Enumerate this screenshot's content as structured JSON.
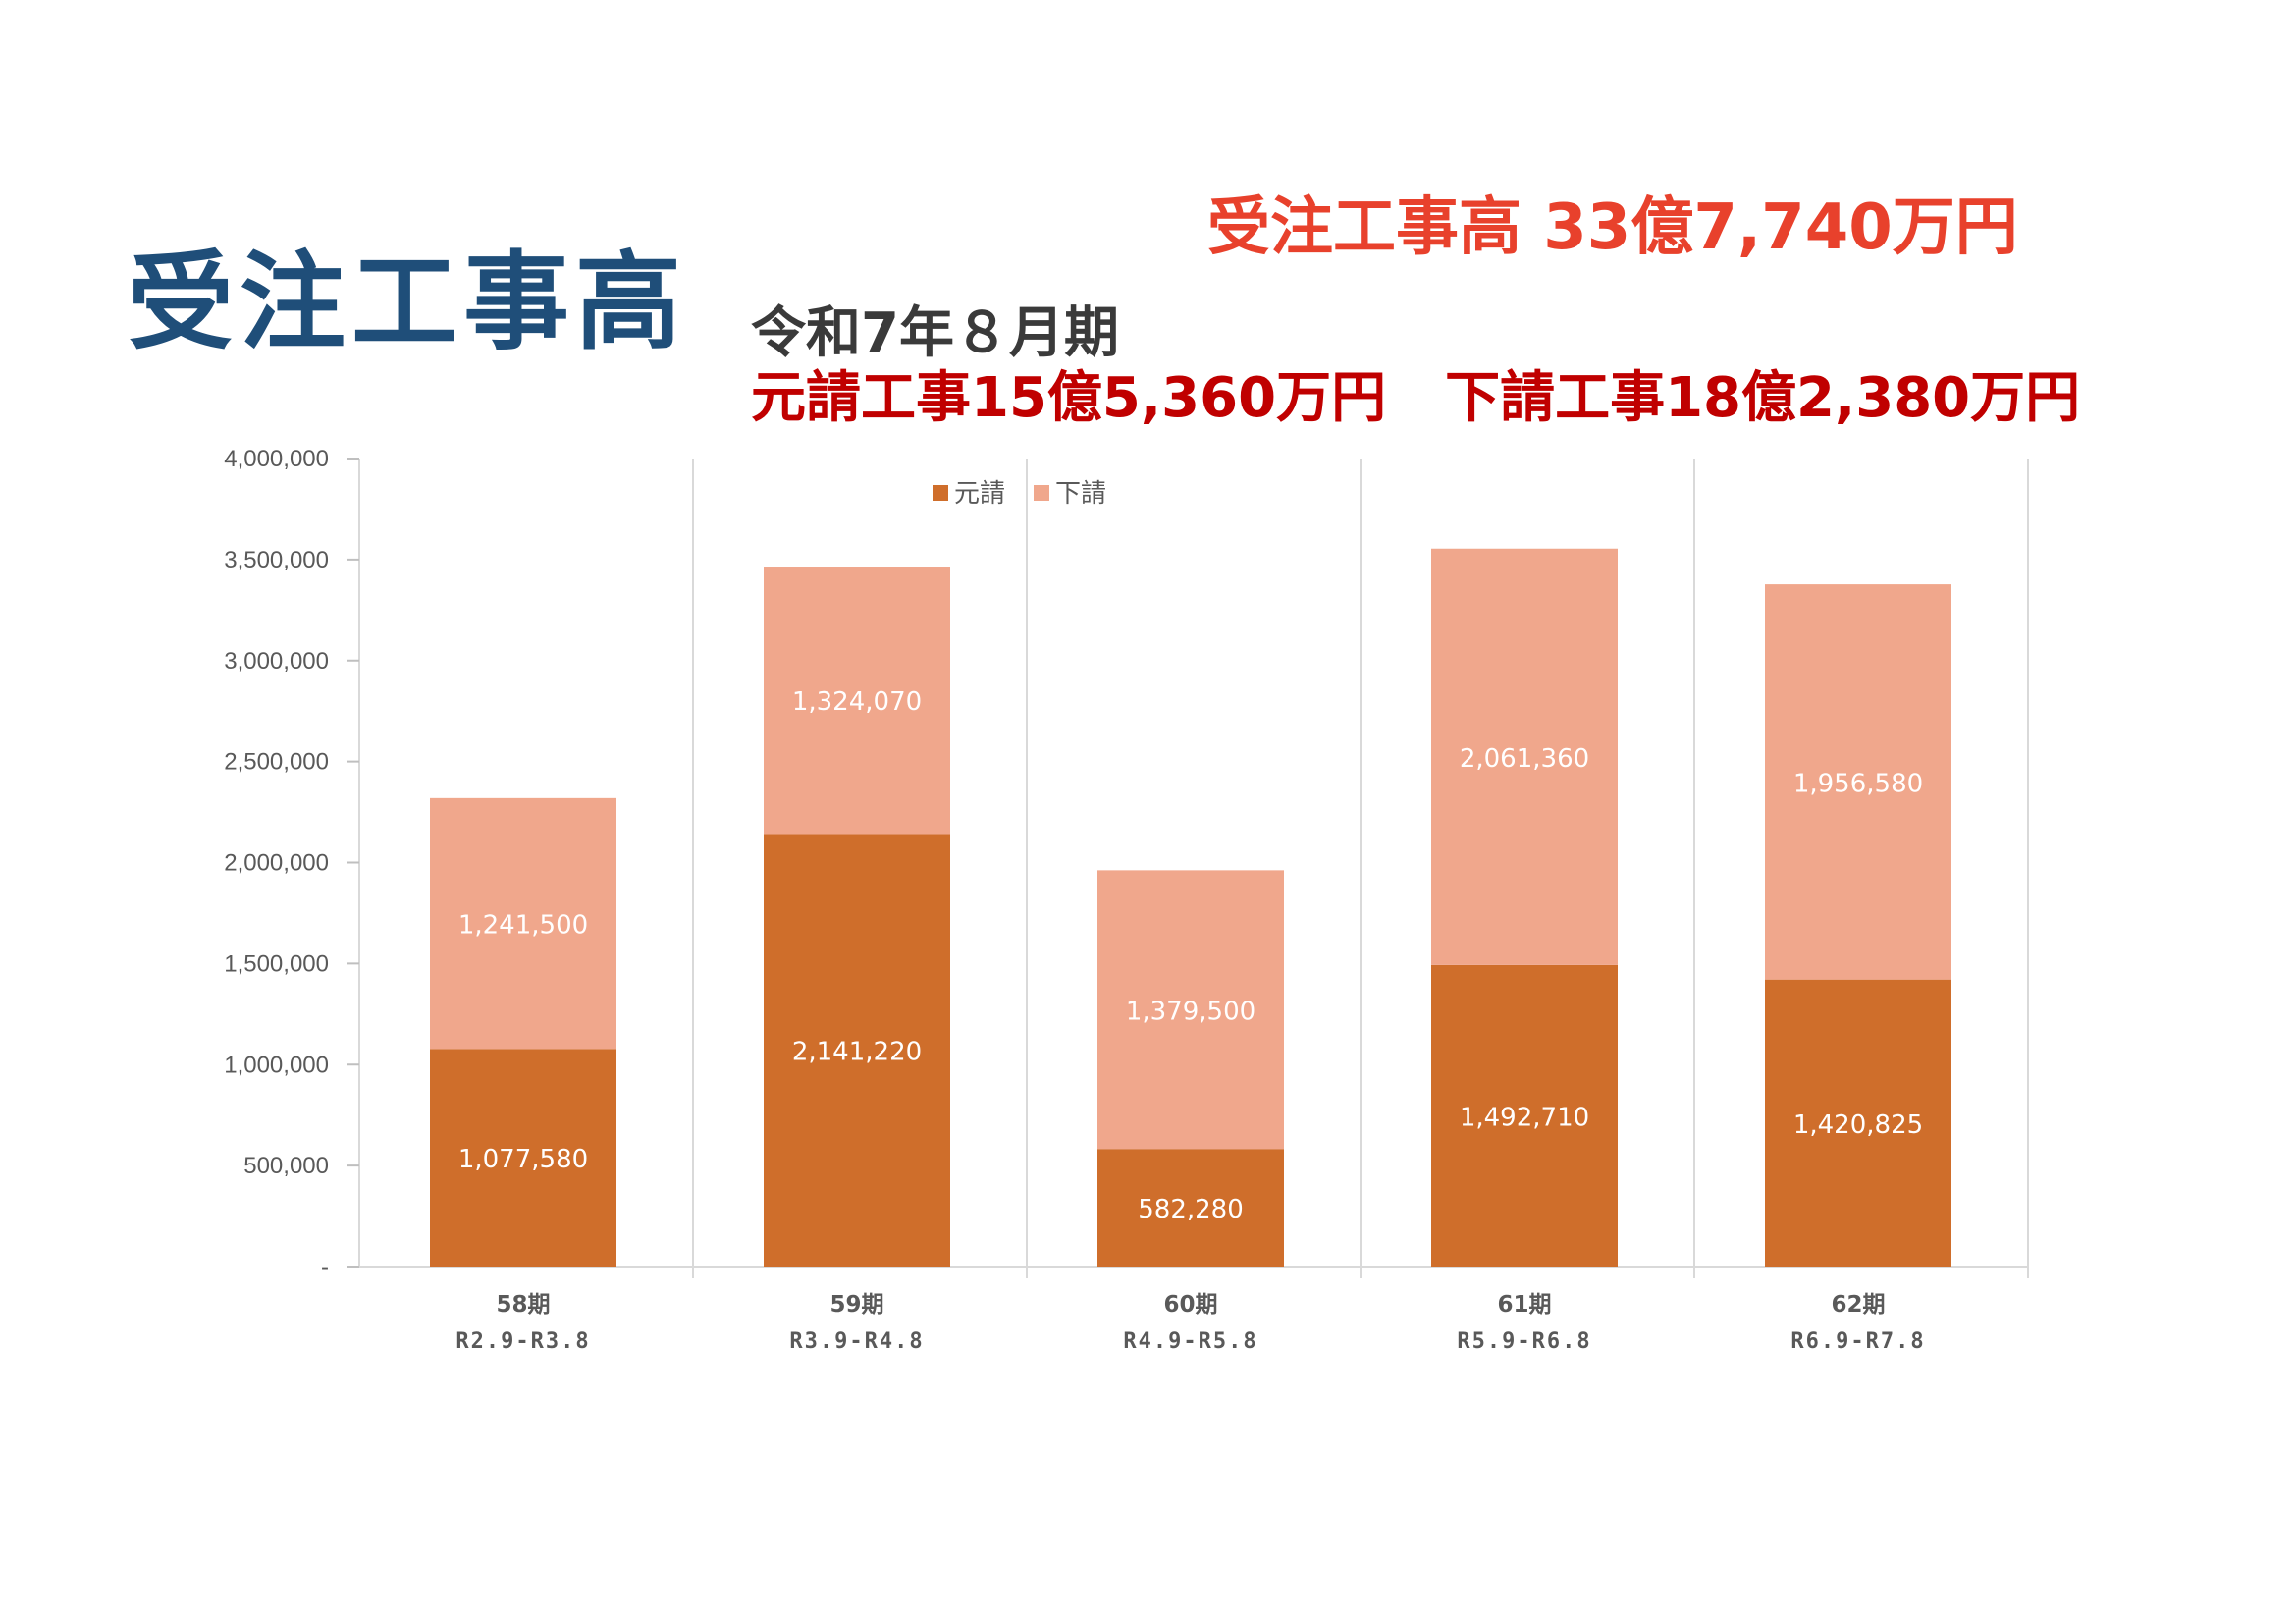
{
  "heading": {
    "title": "受注工事高",
    "total": "受注工事高 33億7,740万円",
    "period": "令和7年８月期",
    "prime": "元請工事15億5,360万円",
    "sub": "下請工事18億2,380万円"
  },
  "colors": {
    "prime": "#cf6e2b",
    "sub": "#f0a78c",
    "title": "#1f4e79",
    "total": "#e8412c",
    "breakdown": "#c00000"
  },
  "chart_data": {
    "type": "bar",
    "stacked": true,
    "categories": [
      "58期",
      "59期",
      "60期",
      "61期",
      "62期"
    ],
    "subcategories": [
      "R2.9-R3.8",
      "R3.9-R4.8",
      "R4.9-R5.8",
      "R5.9-R6.8",
      "R6.9-R7.8"
    ],
    "series": [
      {
        "name": "元請",
        "values": [
          1077580,
          2141220,
          582280,
          1492710,
          1420825
        ],
        "labels": [
          "1,077,580",
          "2,141,220",
          "582,280",
          "1,492,710",
          "1,420,825"
        ]
      },
      {
        "name": "下請",
        "values": [
          1241500,
          1324070,
          1379500,
          2061360,
          1956580
        ],
        "labels": [
          "1,241,500",
          "1,324,070",
          "1,379,500",
          "2,061,360",
          "1,956,580"
        ]
      }
    ],
    "ylim": [
      0,
      4000000
    ],
    "yticks": [
      0,
      500000,
      1000000,
      1500000,
      2000000,
      2500000,
      3000000,
      3500000,
      4000000
    ],
    "ytick_labels": [
      "-",
      "500,000",
      "1,000,000",
      "1,500,000",
      "2,000,000",
      "2,500,000",
      "3,000,000",
      "3,500,000",
      "4,000,000"
    ],
    "legend": "top-center",
    "grid": false
  }
}
